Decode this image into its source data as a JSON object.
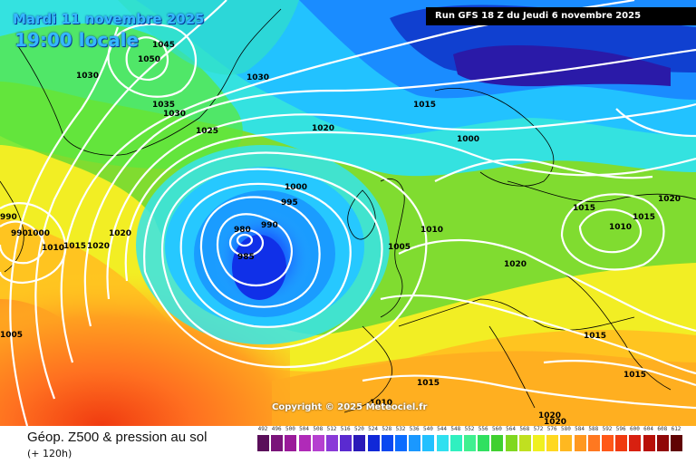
{
  "header": {
    "date": "Mardi 11 novembre 2025",
    "local_time": "19:00 locale",
    "run": "Run GFS 18 Z du Jeudi 6 novembre 2025"
  },
  "copyright": "Copyright © 2025 Meteociel.fr",
  "footer": {
    "title": "Géop. Z500 & pression au sol",
    "subtitle": "(+ 120h)"
  },
  "legend": {
    "levels": [
      "492",
      "496",
      "500",
      "504",
      "508",
      "512",
      "516",
      "520",
      "524",
      "528",
      "532",
      "536",
      "540",
      "544",
      "548",
      "552",
      "556",
      "560",
      "564",
      "568",
      "572",
      "576",
      "580",
      "584",
      "588",
      "592",
      "596",
      "600",
      "604",
      "608",
      "612"
    ],
    "colors": [
      "#5a0f5a",
      "#7a147a",
      "#9a1a9a",
      "#b02ab8",
      "#b540d0",
      "#8a3ad8",
      "#5a2ad0",
      "#2a1ab8",
      "#1028d8",
      "#0a48f0",
      "#0a6cff",
      "#1a98ff",
      "#22c0ff",
      "#30e0f0",
      "#30f0c0",
      "#40f090",
      "#30e060",
      "#40d030",
      "#80d820",
      "#c0e020",
      "#f0f020",
      "#ffd820",
      "#ffb820",
      "#ff9820",
      "#ff7820",
      "#ff5818",
      "#f03a10",
      "#d82010",
      "#b81008",
      "#900808",
      "#600404"
    ]
  },
  "pressure_labels": [
    "1045",
    "1050",
    "1030",
    "1035",
    "1030",
    "1030",
    "1025",
    "1020",
    "1015",
    "1000",
    "1000",
    "995",
    "990",
    "980",
    "985",
    "1005",
    "1010",
    "1020",
    "1015",
    "1010",
    "1015",
    "1020",
    "1020",
    "1020",
    "1015",
    "1015",
    "1015",
    "1010",
    "1020",
    "1020",
    "1005",
    "990",
    "990",
    "1000",
    "1010",
    "1015"
  ]
}
